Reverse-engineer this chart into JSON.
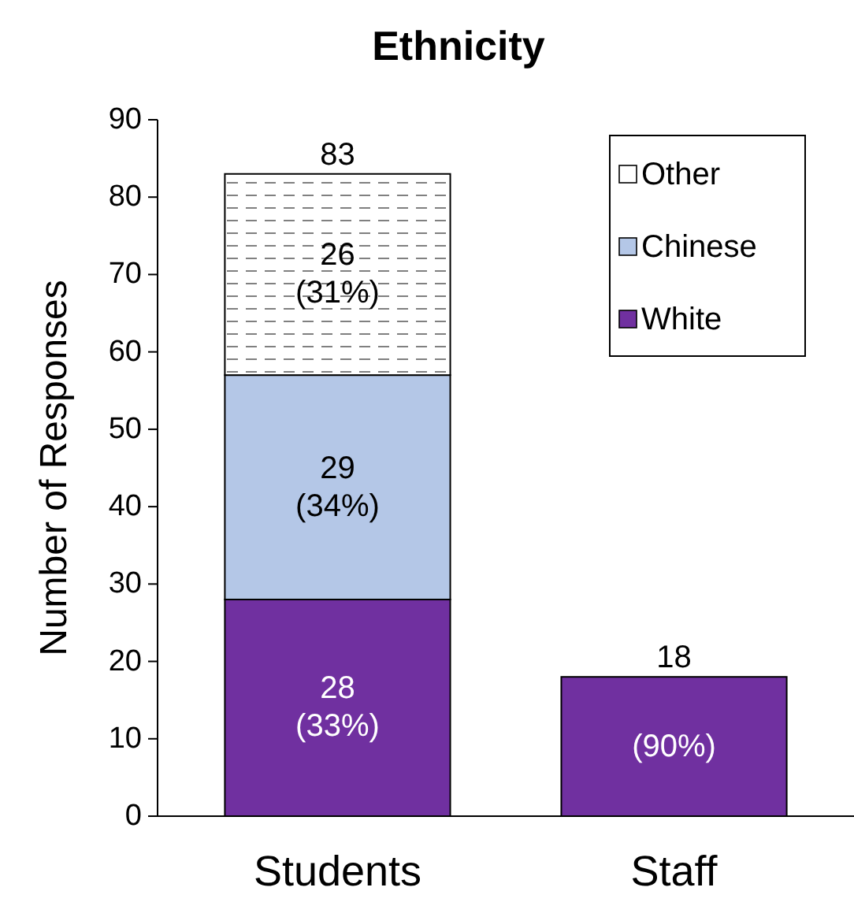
{
  "chart_data": {
    "type": "bar",
    "title": "Ethnicity",
    "ylabel": "Number of Responses",
    "categories": [
      "Students",
      "Staff"
    ],
    "stacked": true,
    "series": [
      {
        "name": "White",
        "color": "#7030a0",
        "values": [
          28,
          18
        ],
        "value_labels": [
          "28\n(33%)",
          null
        ]
      },
      {
        "name": "Chinese",
        "color": "#b4c7e7",
        "values": [
          29,
          null
        ],
        "value_labels": [
          "29\n(34%)",
          null
        ]
      },
      {
        "name": "Other",
        "color": "#ffffff",
        "values": [
          26,
          null
        ],
        "value_labels": [
          "26\n(31%)",
          null
        ]
      }
    ],
    "totals": [
      "83",
      "18"
    ],
    "annotations": [
      "(90%)"
    ],
    "ylim": [
      0,
      90
    ],
    "yticks": [
      0,
      10,
      20,
      30,
      40,
      50,
      60,
      70,
      80,
      90
    ],
    "grid": false,
    "legend": "top right"
  }
}
